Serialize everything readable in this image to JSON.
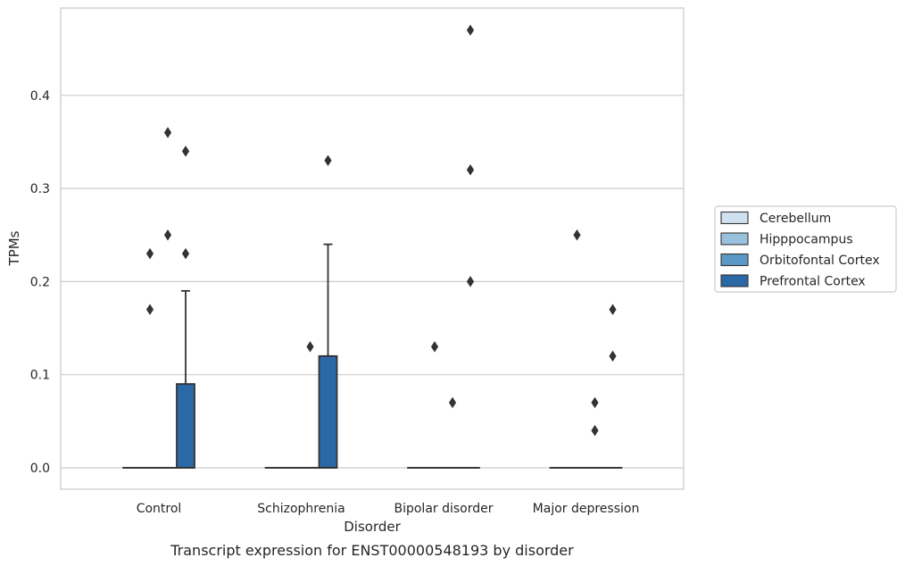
{
  "chart_data": {
    "type": "box",
    "title": "",
    "caption": "Transcript expression for ENST00000548193 by disorder",
    "xlabel": "Disorder",
    "ylabel": "TPMs",
    "ylim": [
      -0.023,
      0.495
    ],
    "yticks": [
      0.0,
      0.1,
      0.2,
      0.3,
      0.4
    ],
    "ytick_labels": [
      "0.0",
      "0.1",
      "0.2",
      "0.3",
      "0.4"
    ],
    "grid": "horizontal",
    "legend_position": "right",
    "categories": [
      "Control",
      "Schizophrenia",
      "Bipolar disorder",
      "Major depression"
    ],
    "series": [
      {
        "name": "Cerebellum",
        "color": "#cfe0f0",
        "boxes": [
          {
            "q1": 0,
            "median": 0,
            "q3": 0,
            "whisker_low": 0,
            "whisker_high": 0,
            "outliers": []
          },
          {
            "q1": 0,
            "median": 0,
            "q3": 0,
            "whisker_low": 0,
            "whisker_high": 0,
            "outliers": []
          },
          {
            "q1": 0,
            "median": 0,
            "q3": 0,
            "whisker_low": 0,
            "whisker_high": 0,
            "outliers": []
          },
          {
            "q1": 0,
            "median": 0,
            "q3": 0,
            "whisker_low": 0,
            "whisker_high": 0,
            "outliers": []
          }
        ]
      },
      {
        "name": "Hipppocampus",
        "color": "#9ac1dc",
        "boxes": [
          {
            "q1": 0,
            "median": 0,
            "q3": 0,
            "whisker_low": 0,
            "whisker_high": 0,
            "outliers": [
              0.17,
              0.23
            ]
          },
          {
            "q1": 0,
            "median": 0,
            "q3": 0,
            "whisker_low": 0,
            "whisker_high": 0,
            "outliers": []
          },
          {
            "q1": 0,
            "median": 0,
            "q3": 0,
            "whisker_low": 0,
            "whisker_high": 0,
            "outliers": [
              0.13
            ]
          },
          {
            "q1": 0,
            "median": 0,
            "q3": 0,
            "whisker_low": 0,
            "whisker_high": 0,
            "outliers": [
              0.25
            ]
          }
        ]
      },
      {
        "name": "Orbitofontal Cortex",
        "color": "#5a99c6",
        "boxes": [
          {
            "q1": 0,
            "median": 0,
            "q3": 0,
            "whisker_low": 0,
            "whisker_high": 0,
            "outliers": [
              0.25,
              0.36
            ]
          },
          {
            "q1": 0,
            "median": 0,
            "q3": 0,
            "whisker_low": 0,
            "whisker_high": 0,
            "outliers": [
              0.13
            ]
          },
          {
            "q1": 0,
            "median": 0,
            "q3": 0,
            "whisker_low": 0,
            "whisker_high": 0,
            "outliers": [
              0.07
            ]
          },
          {
            "q1": 0,
            "median": 0,
            "q3": 0,
            "whisker_low": 0,
            "whisker_high": 0,
            "outliers": [
              0.04,
              0.07
            ]
          }
        ]
      },
      {
        "name": "Prefrontal Cortex",
        "color": "#2a68a6",
        "boxes": [
          {
            "q1": 0,
            "median": 0,
            "q3": 0.09,
            "whisker_low": 0,
            "whisker_high": 0.19,
            "outliers": [
              0.23,
              0.34
            ]
          },
          {
            "q1": 0,
            "median": 0,
            "q3": 0.12,
            "whisker_low": 0,
            "whisker_high": 0.24,
            "outliers": [
              0.33
            ]
          },
          {
            "q1": 0,
            "median": 0,
            "q3": 0,
            "whisker_low": 0,
            "whisker_high": 0,
            "outliers": [
              0.2,
              0.32,
              0.47
            ]
          },
          {
            "q1": 0,
            "median": 0,
            "q3": 0,
            "whisker_low": 0,
            "whisker_high": 0,
            "outliers": [
              0.12,
              0.17
            ]
          }
        ]
      }
    ]
  }
}
